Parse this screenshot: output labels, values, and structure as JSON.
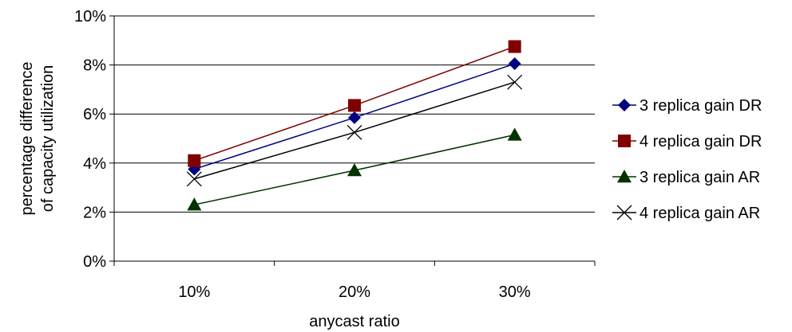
{
  "chart_data": {
    "type": "line",
    "categories": [
      "10%",
      "20%",
      "30%"
    ],
    "series": [
      {
        "name": "3 replica gain DR",
        "values": [
          3.75,
          5.85,
          8.05
        ],
        "color": "#000080",
        "marker": "diamond"
      },
      {
        "name": "4 replica gain DR",
        "values": [
          4.1,
          6.35,
          8.75
        ],
        "color": "#800000",
        "marker": "square"
      },
      {
        "name": "3 replica gain AR",
        "values": [
          2.3,
          3.7,
          5.15
        ],
        "color": "#003300",
        "marker": "triangle"
      },
      {
        "name": "4 replica gain AR",
        "values": [
          3.35,
          5.25,
          7.3
        ],
        "color": "#000000",
        "marker": "x"
      }
    ],
    "y_ticks": [
      "0%",
      "2%",
      "4%",
      "6%",
      "8%",
      "10%"
    ],
    "ylim": [
      0,
      10
    ],
    "xlabel": "anycast ratio",
    "ylabel_lines": [
      "percentage difference",
      "of capacity utilization"
    ],
    "grid": "horizontal",
    "legend_position": "right"
  }
}
